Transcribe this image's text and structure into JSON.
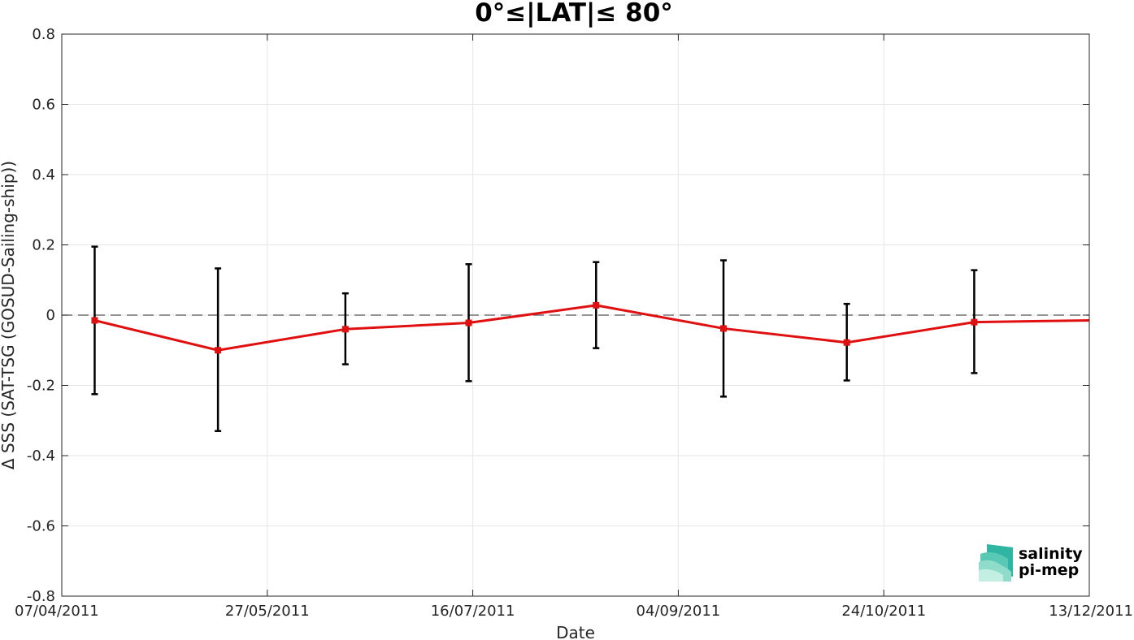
{
  "chart_data": {
    "type": "line",
    "title": "0°≤|LAT|≤ 80°",
    "xlabel": "Date",
    "ylabel": "Δ SSS (SAT-TSG (GOSUD-Sailing-ship))",
    "ylim": [
      -0.8,
      0.8
    ],
    "xlim": [
      "07/04/2011",
      "13/12/2011"
    ],
    "x_ticks": [
      "07/04/2011",
      "27/05/2011",
      "16/07/2011",
      "04/09/2011",
      "24/10/2011",
      "13/12/2011"
    ],
    "y_ticks": [
      "-0.8",
      "-0.6",
      "-0.4",
      "-0.2",
      "0",
      "0.2",
      "0.4",
      "0.6",
      "0.8"
    ],
    "grid": true,
    "reference_line": {
      "y": 0,
      "style": "dashed",
      "color": "#555555"
    },
    "series": [
      {
        "color": "#e01010",
        "marker": "square",
        "error_bar_color": "#000000",
        "points": [
          {
            "x": "15/04/2011",
            "y": -0.015,
            "lower": -0.225,
            "upper": 0.195
          },
          {
            "x": "15/05/2011",
            "y": -0.1,
            "lower": -0.33,
            "upper": 0.133
          },
          {
            "x": "15/06/2011",
            "y": -0.04,
            "lower": -0.14,
            "upper": 0.062
          },
          {
            "x": "15/07/2011",
            "y": -0.022,
            "lower": -0.188,
            "upper": 0.145
          },
          {
            "x": "15/08/2011",
            "y": 0.028,
            "lower": -0.094,
            "upper": 0.151
          },
          {
            "x": "15/09/2011",
            "y": -0.038,
            "lower": -0.232,
            "upper": 0.156
          },
          {
            "x": "15/10/2011",
            "y": -0.078,
            "lower": -0.186,
            "upper": 0.032
          },
          {
            "x": "15/11/2011",
            "y": -0.02,
            "lower": -0.165,
            "upper": 0.128
          },
          {
            "x": "13/12/2011",
            "y": -0.015
          }
        ]
      }
    ]
  },
  "logo": {
    "line1": "salinity",
    "line2": "pi-mep",
    "color1": "#1aa898",
    "color2": "#1a6a58"
  }
}
